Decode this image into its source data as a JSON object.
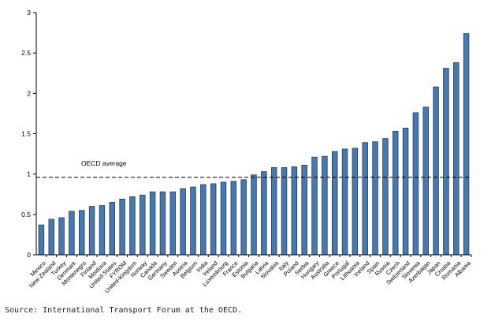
{
  "chart_data": {
    "type": "bar",
    "title": "",
    "xlabel": "",
    "ylabel": "",
    "ylim": [
      0,
      3
    ],
    "yticks": [
      0,
      0.5,
      1,
      1.5,
      2,
      2.5,
      3
    ],
    "ytick_labels": [
      "0",
      "0.5",
      "1",
      "1.5",
      "2",
      "2.5",
      "3"
    ],
    "grid": false,
    "bar_color": "#4a78ab",
    "bar_edge_color": "#1f3f66",
    "categories": [
      "Mexico",
      "New Zealand",
      "Turkey",
      "Denmark",
      "Montenegro",
      "Finland",
      "Moldova",
      "United-States",
      "FYROM",
      "United-Kingdom",
      "Norway",
      "Canada",
      "Germany",
      "Sweden",
      "Austria",
      "Belgium",
      "India",
      "Ireland",
      "Luxembourg",
      "France",
      "Estonia",
      "Bulgaria",
      "Latvia",
      "Slovakia",
      "Italy",
      "Poland",
      "Serbia",
      "Hungary",
      "Australia",
      "Greece",
      "Portugal",
      "Lithuania",
      "Iceland",
      "Spain",
      "Russia",
      "Czech",
      "Switzerland",
      "Slovenia",
      "Azerbaijan",
      "Japan",
      "Croatia",
      "Romania",
      "Albania"
    ],
    "values": [
      0.37,
      0.44,
      0.46,
      0.54,
      0.55,
      0.6,
      0.61,
      0.65,
      0.69,
      0.72,
      0.74,
      0.78,
      0.78,
      0.78,
      0.82,
      0.84,
      0.87,
      0.88,
      0.9,
      0.91,
      0.93,
      0.99,
      1.03,
      1.08,
      1.08,
      1.09,
      1.11,
      1.21,
      1.22,
      1.28,
      1.31,
      1.32,
      1.39,
      1.4,
      1.44,
      1.53,
      1.57,
      1.76,
      1.83,
      2.08,
      2.31,
      2.38,
      2.74
    ],
    "reference_line": {
      "label": "OECD average",
      "value": 0.96
    }
  },
  "source": "Source: International Transport Forum at the OECD."
}
